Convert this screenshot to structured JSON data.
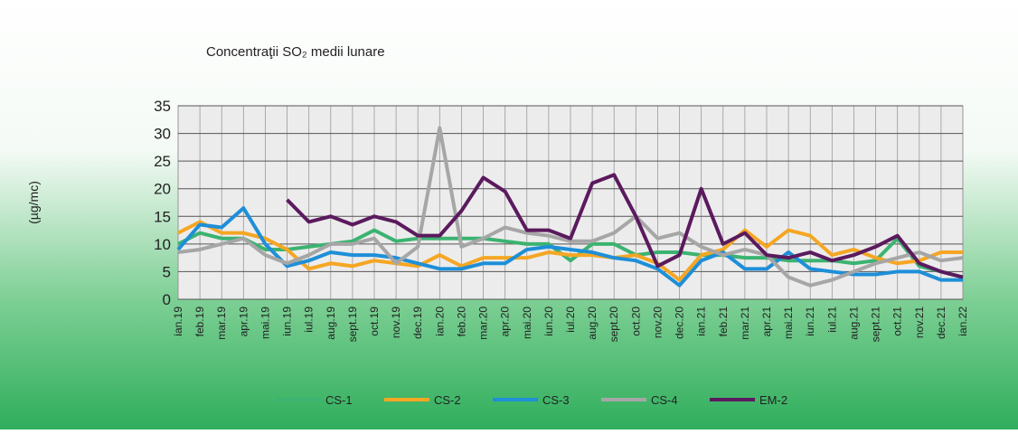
{
  "chart_data": {
    "type": "line",
    "title": "Concentraţii SO₂ medii lunare",
    "ylabel": "(µg/mc)",
    "categories": [
      "ian.19",
      "feb.19",
      "mar.19",
      "apr.19",
      "mai.19",
      "iun.19",
      "iul.19",
      "aug.19",
      "sept.19",
      "oct.19",
      "nov.19",
      "dec.19",
      "ian.20",
      "feb.20",
      "mar.20",
      "apr.20",
      "mai.20",
      "iun.20",
      "iul.20",
      "aug.20",
      "sept.20",
      "oct.20",
      "nov.20",
      "dec.20",
      "ian.21",
      "feb.21",
      "mar.21",
      "apr.21",
      "mai.21",
      "iun.21",
      "iul.21",
      "aug.21",
      "sept.21",
      "oct.21",
      "nov.21",
      "dec.21",
      "ian.22"
    ],
    "series": [
      {
        "name": "CS-1",
        "color": "#3cb371",
        "values": [
          10,
          12,
          11,
          11,
          9,
          9,
          9.5,
          10,
          10.5,
          12.5,
          10.5,
          11,
          11,
          11,
          11,
          10.5,
          10,
          10,
          7,
          10,
          10,
          8,
          8.5,
          8.5,
          8,
          8,
          7.5,
          7.5,
          7,
          7,
          7,
          6.5,
          7,
          11,
          6,
          5,
          4
        ]
      },
      {
        "name": "CS-2",
        "color": "#f5a623",
        "values": [
          12,
          14,
          12,
          12,
          11,
          9,
          5.5,
          6.5,
          6,
          7,
          6.5,
          6,
          8,
          6,
          7.5,
          7.5,
          7.5,
          8.5,
          8,
          8,
          7.5,
          8,
          6.5,
          3.5,
          8,
          9,
          12.5,
          9.5,
          12.5,
          11.5,
          8,
          9,
          7.5,
          6.5,
          7,
          8.5,
          8.5
        ]
      },
      {
        "name": "CS-3",
        "color": "#1e8fd8",
        "values": [
          9,
          13.5,
          13,
          16.5,
          10,
          6,
          7,
          8.5,
          8,
          8,
          7.5,
          6.5,
          5.5,
          5.5,
          6.5,
          6.5,
          9,
          9.5,
          9,
          8.5,
          7.5,
          7,
          5.5,
          2.5,
          7,
          8.5,
          5.5,
          5.5,
          8.5,
          5.5,
          5,
          4.5,
          4.5,
          5,
          5,
          3.5,
          3.5
        ]
      },
      {
        "name": "CS-4",
        "color": "#a6a6a6",
        "values": [
          8.5,
          9,
          10,
          11,
          8,
          6.5,
          8,
          10,
          10,
          11,
          6.5,
          9.5,
          31,
          9.5,
          11,
          13,
          12,
          11.5,
          10.5,
          10.5,
          12,
          15,
          11,
          12,
          9.5,
          8,
          9,
          8,
          4,
          2.5,
          3.5,
          5,
          6.5,
          7.5,
          8.5,
          7,
          7.5
        ]
      },
      {
        "name": "EM-2",
        "color": "#5b1a5e",
        "values": [
          null,
          null,
          null,
          null,
          null,
          18,
          14,
          15,
          13.5,
          15,
          14,
          11.5,
          11.5,
          16,
          22,
          19.5,
          12.5,
          12.5,
          11,
          21,
          22.5,
          15,
          6,
          8,
          20,
          10,
          12,
          8,
          7.5,
          8.5,
          7,
          8,
          9.5,
          11.5,
          6.5,
          5,
          4
        ]
      }
    ],
    "ylim": [
      0,
      35
    ],
    "yticks": [
      0,
      5,
      10,
      15,
      20,
      25,
      30,
      35
    ],
    "grid": true,
    "legend": "bottom"
  }
}
